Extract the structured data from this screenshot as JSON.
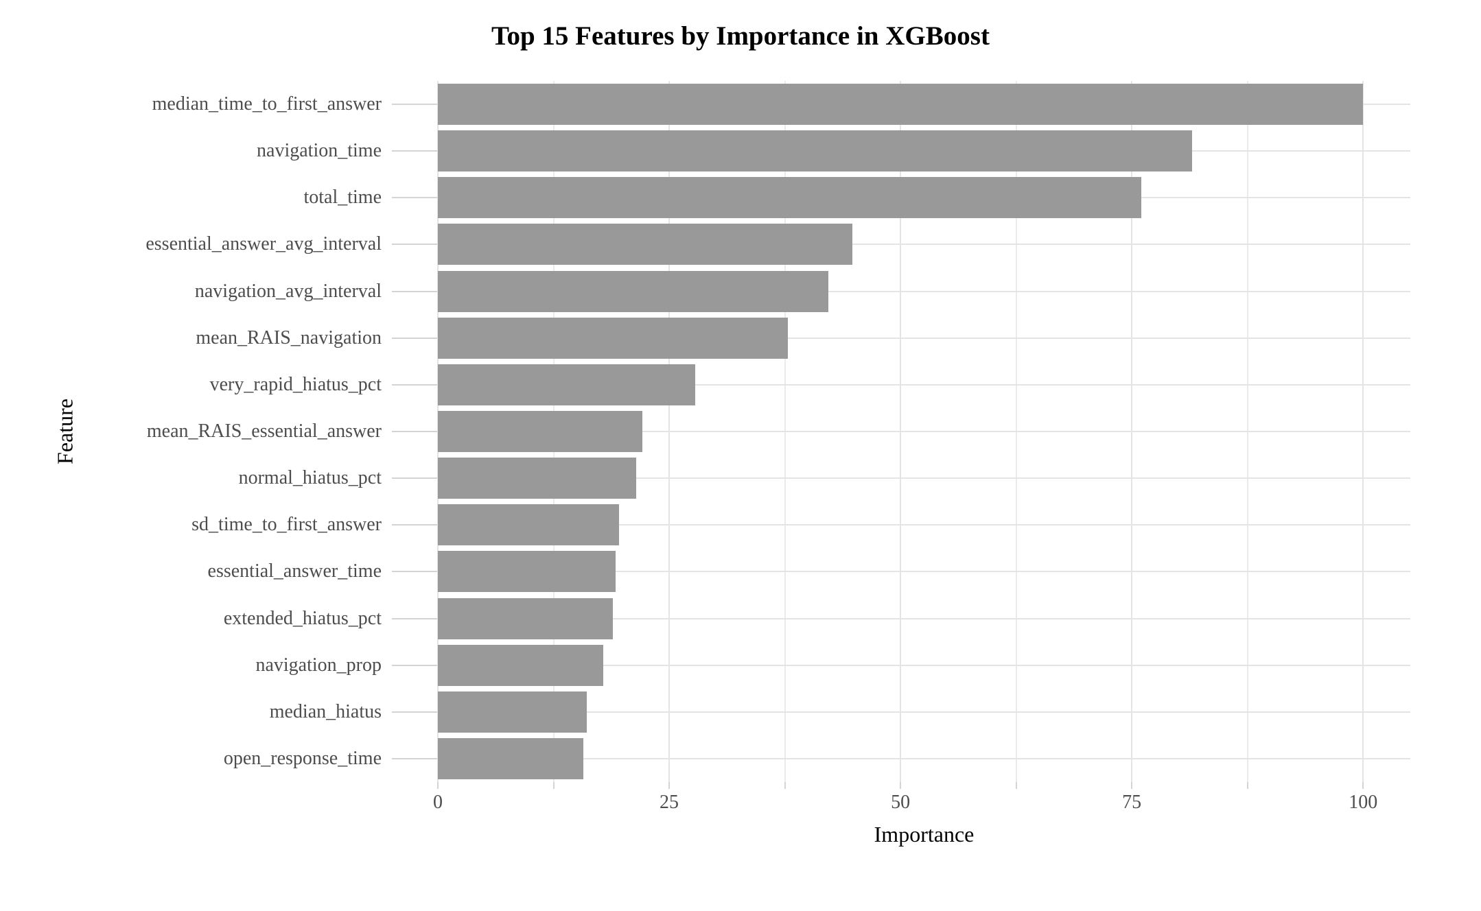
{
  "chart_data": {
    "type": "bar",
    "orientation": "horizontal",
    "title": "Top 15 Features by Importance in XGBoost",
    "xlabel": "Importance",
    "ylabel": "Feature",
    "categories": [
      "median_time_to_first_answer",
      "navigation_time",
      "total_time",
      "essential_answer_avg_interval",
      "navigation_avg_interval",
      "mean_RAIS_navigation",
      "very_rapid_hiatus_pct",
      "mean_RAIS_essential_answer",
      "normal_hiatus_pct",
      "sd_time_to_first_answer",
      "essential_answer_time",
      "extended_hiatus_pct",
      "navigation_prop",
      "median_hiatus",
      "open_response_time"
    ],
    "values": [
      100,
      81.5,
      76,
      44.8,
      42.2,
      37.8,
      27.8,
      22.1,
      21.4,
      19.6,
      19.2,
      18.9,
      17.9,
      16.1,
      15.7
    ],
    "x_major_ticks": [
      0,
      25,
      50,
      75,
      100
    ],
    "x_minor_ticks": [
      12.5,
      37.5,
      62.5,
      87.5
    ],
    "xlim": [
      0,
      105.1
    ],
    "grid": true,
    "legend_position": "none",
    "bar_fill": "#999999",
    "major_grid_color": "#E4E4E4",
    "minor_grid_color": "#EBEBEB",
    "tick_mark_color": "#D4D4D4",
    "axis_text_color": "#4D4D4D",
    "title_color": "#000000"
  }
}
